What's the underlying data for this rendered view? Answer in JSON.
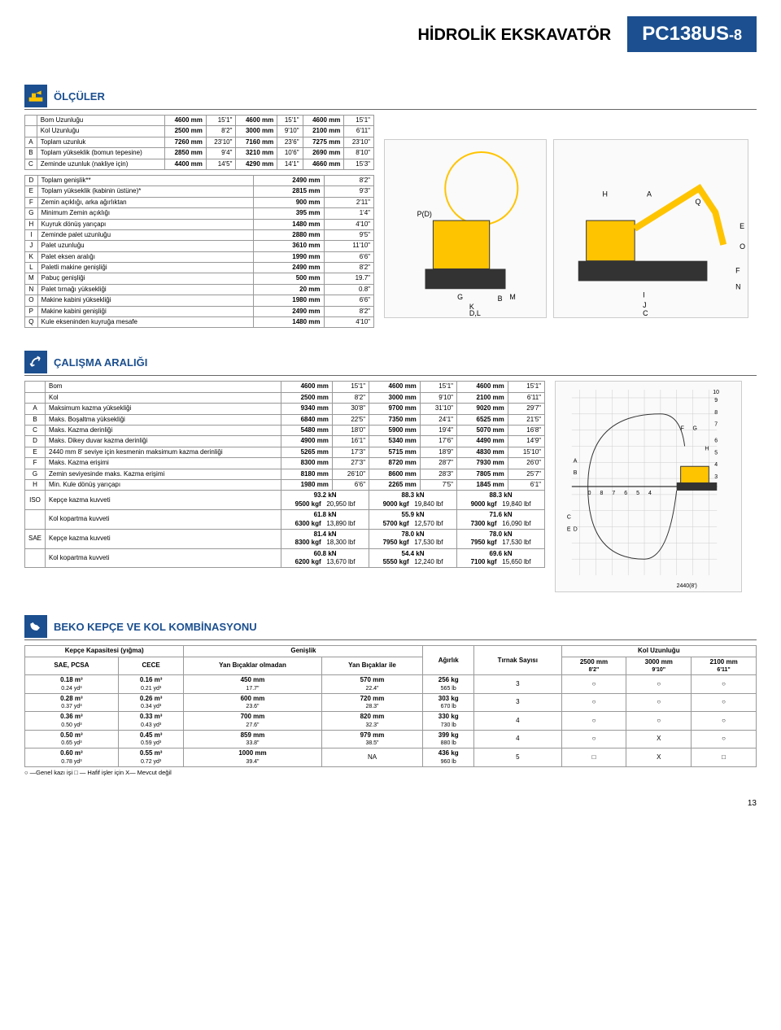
{
  "header": {
    "title": "HİDROLİK EKSKAVATÖR",
    "model": "PC138US",
    "model_suffix": "-8"
  },
  "dimensions": {
    "section_title": "ÖLÇÜLER",
    "table1": {
      "rows": [
        {
          "code": "",
          "label": "Bom Uzunluğu",
          "v1": "4600 mm",
          "i1": "15'1\"",
          "v2": "4600 mm",
          "i2": "15'1\"",
          "v3": "4600 mm",
          "i3": "15'1\""
        },
        {
          "code": "",
          "label": "Kol Uzunluğu",
          "v1": "2500 mm",
          "i1": "8'2\"",
          "v2": "3000 mm",
          "i2": "9'10\"",
          "v3": "2100 mm",
          "i3": "6'11\""
        },
        {
          "code": "A",
          "label": "Toplam uzunluk",
          "v1": "7260 mm",
          "i1": "23'10\"",
          "v2": "7160 mm",
          "i2": "23'6\"",
          "v3": "7275 mm",
          "i3": "23'10\""
        },
        {
          "code": "B",
          "label": "Toplam yükseklik (bomun tepesine)",
          "v1": "2850 mm",
          "i1": "9'4\"",
          "v2": "3210 mm",
          "i2": "10'6\"",
          "v3": "2690 mm",
          "i3": "8'10\""
        },
        {
          "code": "C",
          "label": "Zeminde uzunluk (nakliye için)",
          "v1": "4400 mm",
          "i1": "14'5\"",
          "v2": "4290 mm",
          "i2": "14'1\"",
          "v3": "4660 mm",
          "i3": "15'3\""
        }
      ]
    },
    "table2": {
      "rows": [
        {
          "code": "D",
          "label": "Toplam genişlik**",
          "v": "2490 mm",
          "i": "8'2\""
        },
        {
          "code": "E",
          "label": "Toplam yükseklik (kabinin üstüne)*",
          "v": "2815 mm",
          "i": "9'3\""
        },
        {
          "code": "F",
          "label": "Zemin açıklığı, arka ağırlıktan",
          "v": "900 mm",
          "i": "2'11\""
        },
        {
          "code": "G",
          "label": "Minimum Zemin açıklığı",
          "v": "395 mm",
          "i": "1'4\""
        },
        {
          "code": "H",
          "label": "Kuyruk dönüş yarıçapı",
          "v": "1480 mm",
          "i": "4'10\""
        },
        {
          "code": "I",
          "label": "Zeminde palet uzunluğu",
          "v": "2880 mm",
          "i": "9'5\""
        },
        {
          "code": "J",
          "label": "Palet uzunluğu",
          "v": "3610 mm",
          "i": "11'10\""
        },
        {
          "code": "K",
          "label": "Palet eksen aralığı",
          "v": "1990 mm",
          "i": "6'6\""
        },
        {
          "code": "L",
          "label": "Paletli makine genişliği",
          "v": "2490 mm",
          "i": "8'2\""
        },
        {
          "code": "M",
          "label": "Pabuç genişliği",
          "v": "500 mm",
          "i": "19.7\""
        },
        {
          "code": "N",
          "label": "Palet tırnağı yüksekliği",
          "v": "20 mm",
          "i": "0.8\""
        },
        {
          "code": "O",
          "label": "Makine kabini yüksekliği",
          "v": "1980 mm",
          "i": "6'6\""
        },
        {
          "code": "P",
          "label": "Makine kabini genişliği",
          "v": "2490 mm",
          "i": "8'2\""
        },
        {
          "code": "Q",
          "label": "Kule ekseninden kuyruğa mesafe",
          "v": "1480 mm",
          "i": "4'10\""
        }
      ]
    }
  },
  "working_range": {
    "section_title": "ÇALIŞMA ARALIĞI",
    "rows": [
      {
        "code": "",
        "label": "Bom",
        "v1": "4600 mm",
        "i1": "15'1\"",
        "v2": "4600 mm",
        "i2": "15'1\"",
        "v3": "4600 mm",
        "i3": "15'1\""
      },
      {
        "code": "",
        "label": "Kol",
        "v1": "2500 mm",
        "i1": "8'2\"",
        "v2": "3000 mm",
        "i2": "9'10\"",
        "v3": "2100 mm",
        "i3": "6'11\""
      },
      {
        "code": "A",
        "label": "Maksimum kazma yüksekliği",
        "v1": "9340 mm",
        "i1": "30'8\"",
        "v2": "9700 mm",
        "i2": "31'10\"",
        "v3": "9020 mm",
        "i3": "29'7\""
      },
      {
        "code": "B",
        "label": "Maks. Boşaltma yüksekliği",
        "v1": "6840 mm",
        "i1": "22'5\"",
        "v2": "7350 mm",
        "i2": "24'1\"",
        "v3": "6525 mm",
        "i3": "21'5\""
      },
      {
        "code": "C",
        "label": "Maks. Kazma derinliği",
        "v1": "5480 mm",
        "i1": "18'0\"",
        "v2": "5900 mm",
        "i2": "19'4\"",
        "v3": "5070 mm",
        "i3": "16'8\""
      },
      {
        "code": "D",
        "label": "Maks. Dikey duvar kazma derinliği",
        "v1": "4900 mm",
        "i1": "16'1\"",
        "v2": "5340 mm",
        "i2": "17'6\"",
        "v3": "4490 mm",
        "i3": "14'9\""
      },
      {
        "code": "E",
        "label": "2440 mm 8' seviye için kesmenin   maksimum kazma derinliği",
        "v1": "5265 mm",
        "i1": "17'3\"",
        "v2": "5715 mm",
        "i2": "18'9\"",
        "v3": "4830 mm",
        "i3": "15'10\""
      },
      {
        "code": "F",
        "label": "Maks. Kazma erişimi",
        "v1": "8300 mm",
        "i1": "27'3\"",
        "v2": "8720 mm",
        "i2": "28'7\"",
        "v3": "7930 mm",
        "i3": "26'0\""
      },
      {
        "code": "G",
        "label": "Zemin seviyesinde maks. Kazma erişimi",
        "v1": "8180 mm",
        "i1": "26'10\"",
        "v2": "8600 mm",
        "i2": "28'3\"",
        "v3": "7805 mm",
        "i3": "25'7\""
      },
      {
        "code": "H",
        "label": "Min. Kule dönüş yarıçapı",
        "v1": "1980 mm",
        "i1": "6'6\"",
        "v2": "2265 mm",
        "i2": "7'5\"",
        "v3": "1845 mm",
        "i3": "6'1\""
      }
    ],
    "force_rows": [
      {
        "code": "ISO",
        "label": "Kepçe kazma kuvveti",
        "c1a": "93.2 kN",
        "c1b": "9500 kgf",
        "c1c": "20,950 lbf",
        "c2a": "88.3 kN",
        "c2b": "9000 kgf",
        "c2c": "19,840 lbf",
        "c3a": "88.3 kN",
        "c3b": "9000 kgf",
        "c3c": "19,840 lbf"
      },
      {
        "code": "",
        "label": "Kol kopartma kuvveti",
        "c1a": "61.8 kN",
        "c1b": "6300 kgf",
        "c1c": "13,890 lbf",
        "c2a": "55.9 kN",
        "c2b": "5700 kgf",
        "c2c": "12,570 lbf",
        "c3a": "71.6 kN",
        "c3b": "7300 kgf",
        "c3c": "16,090 lbf"
      },
      {
        "code": "SAE",
        "label": "Kepçe kazma kuvveti",
        "c1a": "81.4 kN",
        "c1b": "8300 kgf",
        "c1c": "18,300 lbf",
        "c2a": "78.0 kN",
        "c2b": "7950 kgf",
        "c2c": "17,530 lbf",
        "c3a": "78.0 kN",
        "c3b": "7950 kgf",
        "c3c": "17,530 lbf"
      },
      {
        "code": "",
        "label": "Kol kopartma kuvveti",
        "c1a": "60.8 kN",
        "c1b": "6200 kgf",
        "c1c": "13,670 lbf",
        "c2a": "54.4 kN",
        "c2b": "5550 kgf",
        "c2c": "12,240 lbf",
        "c3a": "69.6 kN",
        "c3b": "7100 kgf",
        "c3c": "15,650 lbf"
      }
    ],
    "diagram_label": "2440(8')"
  },
  "combo": {
    "section_title": "BEKO KEPÇE VE KOL KOMBİNASYONU",
    "headers": {
      "capacity": "Kepçe Kapasitesi (yığma)",
      "sae": "SAE, PCSA",
      "cece": "CECE",
      "width": "Genişlik",
      "width_wo": "Yan Bıçaklar olmadan",
      "width_w": "Yan Bıçaklar ile",
      "weight": "Ağırlık",
      "teeth": "Tırnak Sayısı",
      "arm": "Kol Uzunluğu",
      "arm1": "2500 mm",
      "arm1s": "8'2\"",
      "arm2": "3000 mm",
      "arm2s": "9'10\"",
      "arm3": "2100 mm",
      "arm3s": "6'11\""
    },
    "rows": [
      {
        "sae": "0.18 m³",
        "sae2": "0.24 yd³",
        "cece": "0.16 m³",
        "cece2": "0.21 yd³",
        "w1": "450 mm",
        "w1s": "17.7\"",
        "w2": "570 mm",
        "w2s": "22.4\"",
        "wt": "256 kg",
        "wt2": "565 lb",
        "teeth": "3",
        "a": "○",
        "b": "○",
        "c": "○"
      },
      {
        "sae": "0.28 m³",
        "sae2": "0.37 yd³",
        "cece": "0.26 m³",
        "cece2": "0.34 yd³",
        "w1": "600 mm",
        "w1s": "23.6\"",
        "w2": "720 mm",
        "w2s": "28.3\"",
        "wt": "303 kg",
        "wt2": "670 lb",
        "teeth": "3",
        "a": "○",
        "b": "○",
        "c": "○"
      },
      {
        "sae": "0.36 m³",
        "sae2": "0.50 yd³",
        "cece": "0.33 m³",
        "cece2": "0.43 yd³",
        "w1": "700 mm",
        "w1s": "27.6\"",
        "w2": "820 mm",
        "w2s": "32.3\"",
        "wt": "330 kg",
        "wt2": "730 lb",
        "teeth": "4",
        "a": "○",
        "b": "○",
        "c": "○"
      },
      {
        "sae": "0.50 m³",
        "sae2": "0.65 yd³",
        "cece": "0.45 m³",
        "cece2": "0.59 yd³",
        "w1": "859 mm",
        "w1s": "33.8\"",
        "w2": "979 mm",
        "w2s": "38.5\"",
        "wt": "399 kg",
        "wt2": "880 lb",
        "teeth": "4",
        "a": "○",
        "b": "X",
        "c": "○"
      },
      {
        "sae": "0.60 m³",
        "sae2": "0.78 yd³",
        "cece": "0.55 m³",
        "cece2": "0.72 yd³",
        "w1": "1000 mm",
        "w1s": "39.4\"",
        "w2": "NA",
        "w2s": "",
        "wt": "436 kg",
        "wt2": "960 lb",
        "teeth": "5",
        "a": "□",
        "b": "X",
        "c": "□"
      }
    ],
    "legend": "○ —Genel kazı işi      □ — Hafif işler için      X— Mevcut değil"
  },
  "page_number": "13"
}
